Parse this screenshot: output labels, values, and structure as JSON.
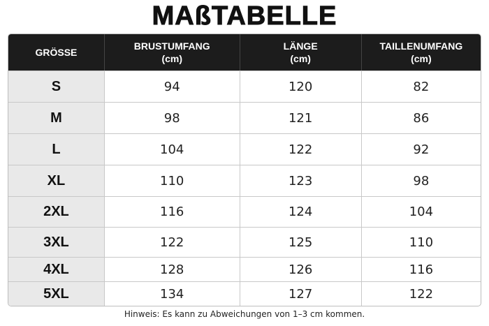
{
  "title": "MAßTABELLE",
  "table": {
    "header": [
      {
        "label": "GRÖSSE"
      },
      {
        "label": "BRUSTUMFANG",
        "unit": "(cm)"
      },
      {
        "label": "LÄNGE",
        "unit": "(cm)"
      },
      {
        "label": "TAILLENUMFANG",
        "unit": "(cm)"
      }
    ],
    "rows": [
      [
        "S",
        94,
        120,
        82
      ],
      [
        "M",
        98,
        121,
        86
      ],
      [
        "L",
        104,
        122,
        92
      ],
      [
        "XL",
        110,
        123,
        98
      ],
      [
        "2XL",
        116,
        124,
        104
      ],
      [
        "3XL",
        122,
        125,
        110
      ],
      [
        "4XL",
        128,
        126,
        116
      ],
      [
        "5XL",
        134,
        127,
        122
      ]
    ]
  },
  "note": "Hinweis: Es kann zu Abweichungen von 1–3 cm kommen."
}
